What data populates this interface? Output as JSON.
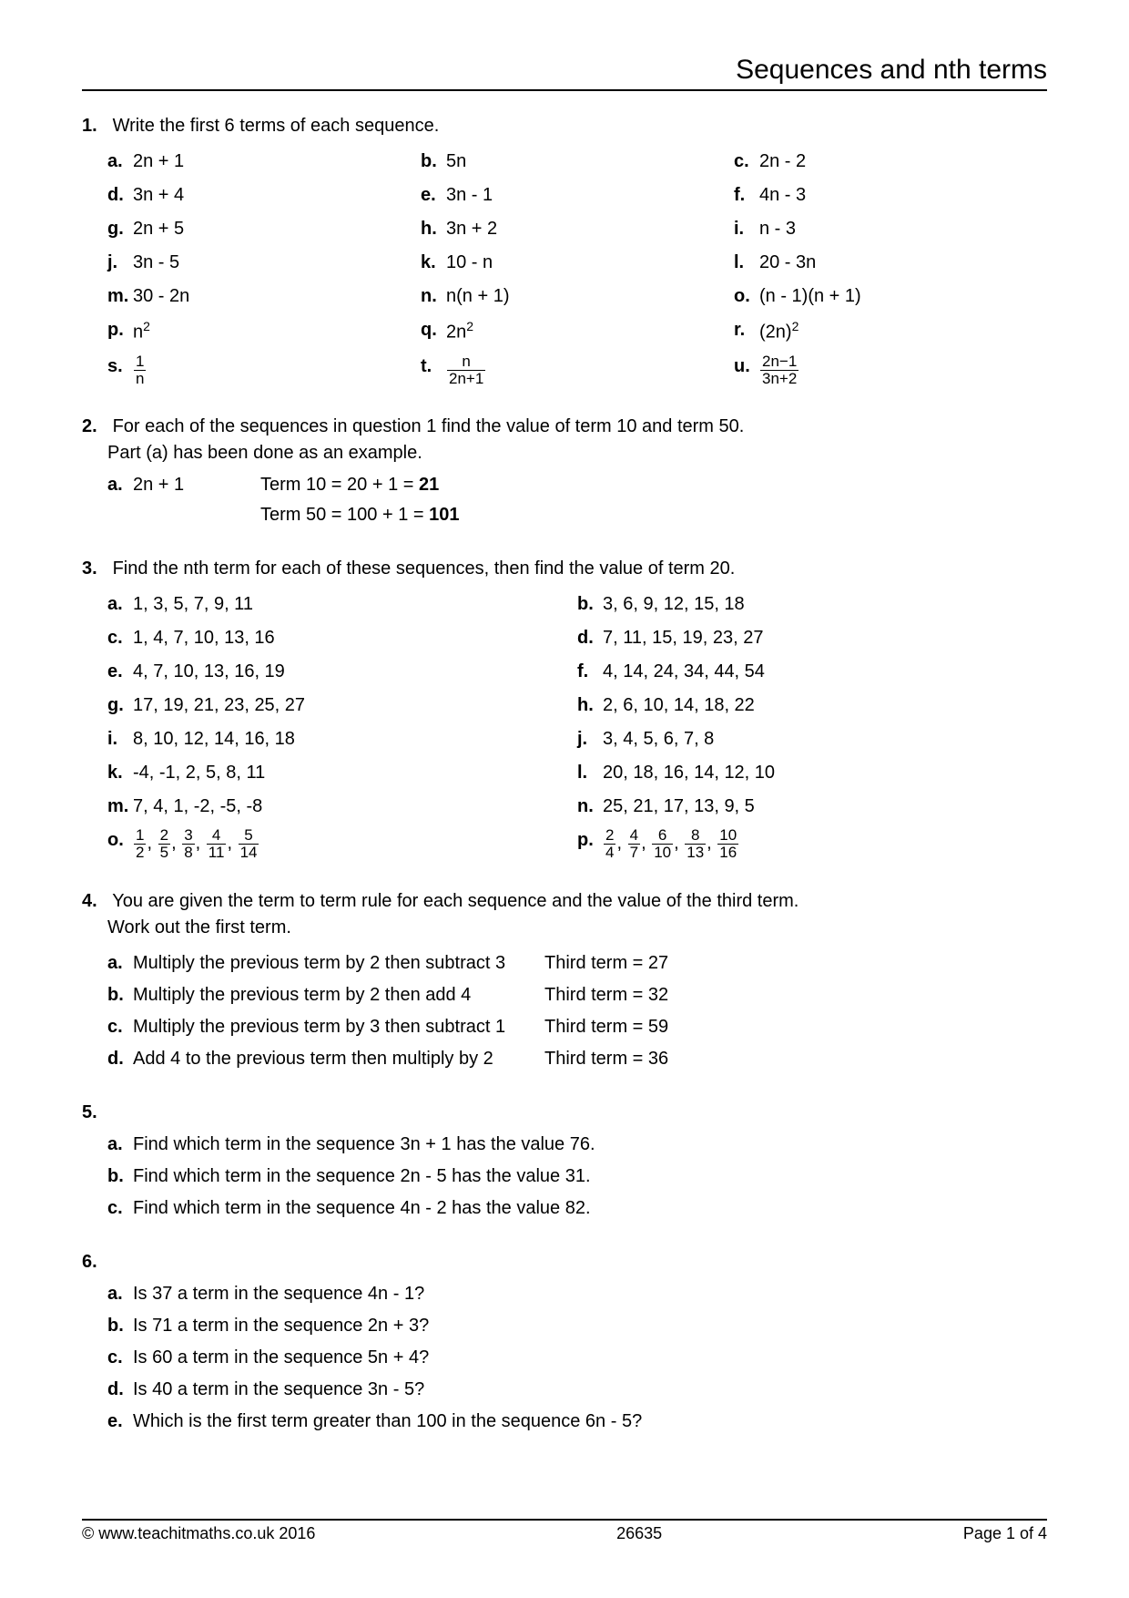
{
  "header": {
    "title": "Sequences and nth terms"
  },
  "q1": {
    "num": "1.",
    "text": "Write the first 6 terms of each sequence.",
    "items": [
      {
        "l": "a.",
        "e": "2n + 1"
      },
      {
        "l": "b.",
        "e": "5n"
      },
      {
        "l": "c.",
        "e": "2n - 2"
      },
      {
        "l": "d.",
        "e": "3n + 4"
      },
      {
        "l": "e.",
        "e": "3n - 1"
      },
      {
        "l": "f.",
        "e": "4n - 3"
      },
      {
        "l": "g.",
        "e": "2n + 5"
      },
      {
        "l": "h.",
        "e": "3n + 2"
      },
      {
        "l": "i.",
        "e": "n - 3"
      },
      {
        "l": "j.",
        "e": "3n - 5"
      },
      {
        "l": "k.",
        "e": "10 - n"
      },
      {
        "l": "l.",
        "e": "20 - 3n"
      },
      {
        "l": "m.",
        "e": "30 - 2n"
      },
      {
        "l": "n.",
        "e": "n(n + 1)"
      },
      {
        "l": "o.",
        "e": "(n - 1)(n + 1)"
      },
      {
        "l": "p.",
        "e": "n²",
        "html": "n<sup>2</sup>"
      },
      {
        "l": "q.",
        "e": "2n²",
        "html": "2n<sup>2</sup>"
      },
      {
        "l": "r.",
        "e": "(2n)²",
        "html": "(2n)<sup>2</sup>"
      },
      {
        "l": "s.",
        "e": "1/n",
        "frac": {
          "num": "1",
          "den": "n"
        }
      },
      {
        "l": "t.",
        "e": "n/(2n+1)",
        "frac": {
          "num": "n",
          "den": "2n+1"
        }
      },
      {
        "l": "u.",
        "e": "(2n-1)/(3n+2)",
        "frac": {
          "num": "2n−1",
          "den": "3n+2"
        }
      }
    ]
  },
  "q2": {
    "num": "2.",
    "text1": "For each of the sequences in question 1 find the value of term 10 and term 50.",
    "text2": "Part (a) has been done as an example.",
    "ex_l": "a.",
    "ex_expr": "2n + 1",
    "ex_line1_a": "Term 10 = 20 + 1 = ",
    "ex_line1_b": "21",
    "ex_line2_a": "Term 50 = 100 + 1 = ",
    "ex_line2_b": "101"
  },
  "q3": {
    "num": "3.",
    "text": "Find the nth term for each of these sequences, then find the value of term 20.",
    "items": [
      {
        "l": "a.",
        "e": "1, 3, 5, 7, 9, 11"
      },
      {
        "l": "b.",
        "e": "3, 6, 9, 12, 15, 18"
      },
      {
        "l": "c.",
        "e": "1, 4, 7, 10, 13, 16"
      },
      {
        "l": "d.",
        "e": "7, 11, 15, 19, 23, 27"
      },
      {
        "l": "e.",
        "e": "4, 7, 10, 13, 16, 19"
      },
      {
        "l": "f.",
        "e": "4, 14, 24, 34, 44, 54"
      },
      {
        "l": "g.",
        "e": "17, 19, 21, 23, 25, 27"
      },
      {
        "l": "h.",
        "e": "2, 6, 10, 14, 18, 22"
      },
      {
        "l": "i.",
        "e": "8, 10, 12, 14, 16, 18"
      },
      {
        "l": "j.",
        "e": "3, 4, 5, 6, 7, 8"
      },
      {
        "l": "k.",
        "e": "-4, -1, 2, 5, 8, 11"
      },
      {
        "l": "l.",
        "e": "20, 18, 16, 14, 12, 10"
      },
      {
        "l": "m.",
        "e": "7, 4, 1, -2, -5, -8"
      },
      {
        "l": "n.",
        "e": "25, 21, 17, 13, 9, 5"
      },
      {
        "l": "o.",
        "fracs": [
          [
            "1",
            "2"
          ],
          [
            "2",
            "5"
          ],
          [
            "3",
            "8"
          ],
          [
            "4",
            "11"
          ],
          [
            "5",
            "14"
          ]
        ]
      },
      {
        "l": "p.",
        "fracs": [
          [
            "2",
            "4"
          ],
          [
            "4",
            "7"
          ],
          [
            "6",
            "10"
          ],
          [
            "8",
            "13"
          ],
          [
            "10",
            "16"
          ]
        ]
      }
    ]
  },
  "q4": {
    "num": "4.",
    "text1": "You are given the term to term rule for each sequence and the value of the third term.",
    "text2": "Work out the first term.",
    "rows": [
      {
        "l": "a.",
        "rule": "Multiply the previous term by 2 then subtract 3",
        "val": "Third term = 27"
      },
      {
        "l": "b.",
        "rule": "Multiply the previous term by 2 then add 4",
        "val": "Third term = 32"
      },
      {
        "l": "c.",
        "rule": "Multiply the previous term by 3 then subtract 1",
        "val": "Third term = 59"
      },
      {
        "l": "d.",
        "rule": "Add 4 to the previous term then multiply by 2",
        "val": "Third term = 36"
      }
    ]
  },
  "q5": {
    "num": "5.",
    "items": [
      {
        "l": "a.",
        "e": "Find which term in the sequence  3n + 1 has the value 76."
      },
      {
        "l": "b.",
        "e": "Find which term in the sequence  2n - 5 has the value 31."
      },
      {
        "l": "c.",
        "e": "Find which term in the sequence  4n - 2 has the value 82."
      }
    ]
  },
  "q6": {
    "num": "6.",
    "items": [
      {
        "l": "a.",
        "e": "Is 37 a term in the sequence 4n - 1?"
      },
      {
        "l": "b.",
        "e": "Is 71 a term in the sequence 2n + 3?"
      },
      {
        "l": "c.",
        "e": "Is 60 a term in the sequence 5n + 4?"
      },
      {
        "l": "d.",
        "e": "Is 40 a term in the sequence 3n - 5?"
      },
      {
        "l": "e.",
        "e": "Which is the first term greater than 100 in the sequence 6n - 5?"
      }
    ]
  },
  "footer": {
    "left": "© www.teachitmaths.co.uk 2016",
    "mid": "26635",
    "right": "Page 1 of 4"
  }
}
